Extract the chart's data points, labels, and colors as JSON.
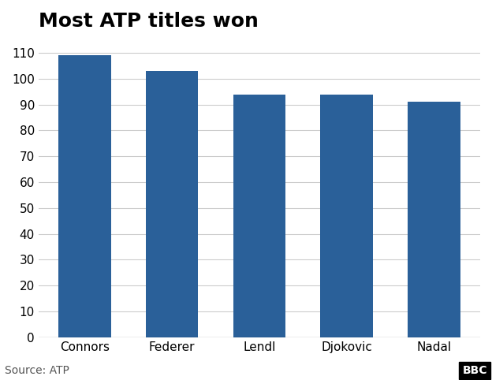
{
  "title": "Most ATP titles won",
  "categories": [
    "Connors",
    "Federer",
    "Lendl",
    "Djokovic",
    "Nadal"
  ],
  "values": [
    109,
    103,
    94,
    94,
    91
  ],
  "bar_color": "#2a6099",
  "ylim": [
    0,
    115
  ],
  "yticks": [
    0,
    10,
    20,
    30,
    40,
    50,
    60,
    70,
    80,
    90,
    100,
    110
  ],
  "source_text": "Source: ATP",
  "bbc_text": "BBC",
  "title_fontsize": 18,
  "tick_fontsize": 11,
  "source_fontsize": 10,
  "background_color": "#ffffff"
}
